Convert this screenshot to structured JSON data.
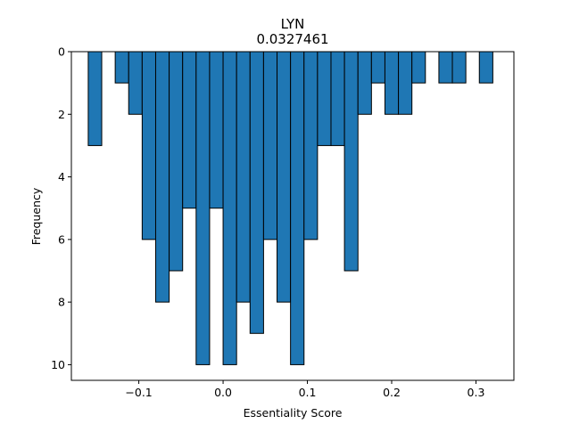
{
  "chart_data": {
    "type": "bar",
    "title": "LYN",
    "subtitle": "0.0327461",
    "xlabel": "Essentiality Score",
    "ylabel": "Frequency",
    "xlim": [
      -0.18,
      0.345
    ],
    "ylim": [
      10.5,
      0
    ],
    "y_inverted": true,
    "bar_color": "#1f77b4",
    "edge_color": "#000000",
    "bin_width": 0.016,
    "xticks": [
      -0.1,
      0.0,
      0.1,
      0.2,
      0.3
    ],
    "xtick_labels": [
      "−0.1",
      "0.0",
      "0.1",
      "0.2",
      "0.3"
    ],
    "yticks": [
      0,
      2,
      4,
      6,
      8,
      10
    ],
    "ytick_labels": [
      "0",
      "2",
      "4",
      "6",
      "8",
      "10"
    ],
    "bins": [
      {
        "x": -0.16,
        "count": 3
      },
      {
        "x": -0.128,
        "count": 1
      },
      {
        "x": -0.112,
        "count": 2
      },
      {
        "x": -0.096,
        "count": 6
      },
      {
        "x": -0.08,
        "count": 8
      },
      {
        "x": -0.064,
        "count": 7
      },
      {
        "x": -0.048,
        "count": 5
      },
      {
        "x": -0.032,
        "count": 10
      },
      {
        "x": -0.016,
        "count": 5
      },
      {
        "x": 0.0,
        "count": 10
      },
      {
        "x": 0.016,
        "count": 8
      },
      {
        "x": 0.032,
        "count": 9
      },
      {
        "x": 0.048,
        "count": 6
      },
      {
        "x": 0.064,
        "count": 8
      },
      {
        "x": 0.08,
        "count": 10
      },
      {
        "x": 0.096,
        "count": 6
      },
      {
        "x": 0.112,
        "count": 3
      },
      {
        "x": 0.128,
        "count": 3
      },
      {
        "x": 0.144,
        "count": 7
      },
      {
        "x": 0.16,
        "count": 2
      },
      {
        "x": 0.176,
        "count": 1
      },
      {
        "x": 0.192,
        "count": 2
      },
      {
        "x": 0.208,
        "count": 2
      },
      {
        "x": 0.224,
        "count": 1
      },
      {
        "x": 0.256,
        "count": 1
      },
      {
        "x": 0.272,
        "count": 1
      },
      {
        "x": 0.304,
        "count": 1
      }
    ]
  }
}
